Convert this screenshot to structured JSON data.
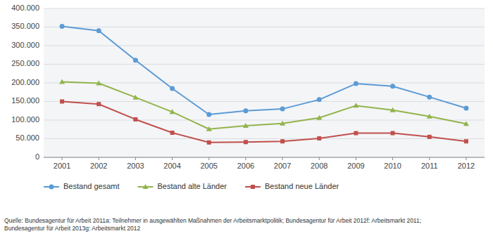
{
  "chart_data": {
    "type": "line",
    "x": [
      2001,
      2002,
      2003,
      2004,
      2005,
      2006,
      2007,
      2008,
      2009,
      2010,
      2011,
      2012
    ],
    "xlim": [
      2000.5,
      2012.5
    ],
    "xticks": [
      2001,
      2002,
      2003,
      2004,
      2005,
      2006,
      2007,
      2008,
      2009,
      2010,
      2011,
      2012
    ],
    "ylim": [
      0,
      400000
    ],
    "yticks": [
      0,
      {
        "value": 50000,
        "label": "50.000"
      },
      {
        "value": 100000,
        "label": "100.000"
      },
      {
        "value": 150000,
        "label": "150.000"
      },
      {
        "value": 200000,
        "label": "200.000"
      },
      {
        "value": 250000,
        "label": "250.000"
      },
      {
        "value": 300000,
        "label": "300.000"
      },
      {
        "value": 350000,
        "label": "350.000"
      },
      {
        "value": 400000,
        "label": "400.000"
      }
    ],
    "grid": true,
    "legend": "bottom",
    "series": [
      {
        "name": "Bestand gesamt",
        "color": "#5b9bd5",
        "marker": "circle",
        "values": [
          352000,
          340000,
          261000,
          185000,
          115000,
          125000,
          130000,
          155000,
          198000,
          191000,
          162000,
          132000
        ]
      },
      {
        "name": "Bestand alte Länder",
        "color": "#92b44b",
        "marker": "triangle",
        "values": [
          203000,
          199000,
          161000,
          122000,
          76000,
          85000,
          91000,
          106000,
          139000,
          127000,
          110000,
          90000
        ]
      },
      {
        "name": "Bestand neue Länder",
        "color": "#c0504d",
        "marker": "square",
        "values": [
          150000,
          143000,
          102000,
          66000,
          40000,
          41000,
          43000,
          51000,
          65000,
          65000,
          55000,
          43000
        ]
      }
    ],
    "annotations": [
      "Quelle: Bundesagentur für Arbeit 2011a: Teilnehmer in ausgewählten Maßnahmen der Arbeitsmarktpolitik; Bundesagentur für Arbeit 2012f: Arbeitsmarkt 2011;\nBundesagentur für Arbeit 2013g: Arbeitsmarkt 2012"
    ]
  }
}
